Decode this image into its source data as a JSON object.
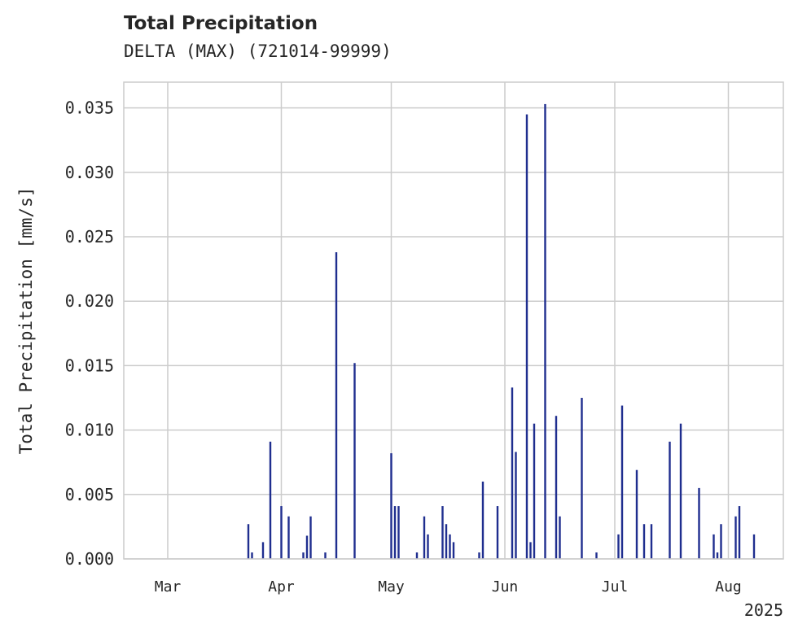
{
  "chart_data": {
    "type": "bar",
    "title": "Total Precipitation",
    "subtitle": "DELTA (MAX) (721014-99999)",
    "xlabel": "",
    "ylabel": "Total Precipitation [mm/s]",
    "x_tick_labels": [
      "Mar",
      "Apr",
      "May",
      "Jun",
      "Jul",
      "Aug"
    ],
    "x_offset_label": "2025",
    "y_tick_labels": [
      "0.000",
      "0.005",
      "0.010",
      "0.015",
      "0.020",
      "0.025",
      "0.030",
      "0.035"
    ],
    "ylim": [
      0,
      0.037
    ],
    "grid": true,
    "bar_color": "#1f2e8f",
    "series": [
      {
        "x": [
          "2025-03-23",
          "2025-03-24",
          "2025-03-27",
          "2025-03-29",
          "2025-04-01",
          "2025-04-03",
          "2025-04-07",
          "2025-04-08",
          "2025-04-09",
          "2025-04-13",
          "2025-04-16",
          "2025-04-21",
          "2025-05-01",
          "2025-05-02",
          "2025-05-03",
          "2025-05-08",
          "2025-05-10",
          "2025-05-11",
          "2025-05-15",
          "2025-05-16",
          "2025-05-17",
          "2025-05-18",
          "2025-05-25",
          "2025-05-26",
          "2025-05-30",
          "2025-06-03",
          "2025-06-04",
          "2025-06-07",
          "2025-06-08",
          "2025-06-09",
          "2025-06-12",
          "2025-06-15",
          "2025-06-16",
          "2025-06-22",
          "2025-06-26",
          "2025-07-02",
          "2025-07-03",
          "2025-07-07",
          "2025-07-09",
          "2025-07-11",
          "2025-07-16",
          "2025-07-19",
          "2025-07-24",
          "2025-07-28",
          "2025-07-29",
          "2025-07-30",
          "2025-08-03",
          "2025-08-04",
          "2025-08-08"
        ],
        "values": [
          0.0027,
          0.0005,
          0.0013,
          0.0091,
          0.0041,
          0.0033,
          0.0005,
          0.0018,
          0.0033,
          0.0005,
          0.0238,
          0.0152,
          0.0082,
          0.0041,
          0.0041,
          0.0005,
          0.0033,
          0.0019,
          0.0041,
          0.0027,
          0.0019,
          0.0013,
          0.0005,
          0.006,
          0.0041,
          0.0133,
          0.0083,
          0.0345,
          0.0013,
          0.0105,
          0.0353,
          0.0111,
          0.0033,
          0.0125,
          0.0005,
          0.0019,
          0.0119,
          0.0069,
          0.0027,
          0.0027,
          0.0091,
          0.0105,
          0.0055,
          0.0019,
          0.0005,
          0.0027,
          0.0033,
          0.0041,
          0.0019
        ]
      }
    ]
  }
}
